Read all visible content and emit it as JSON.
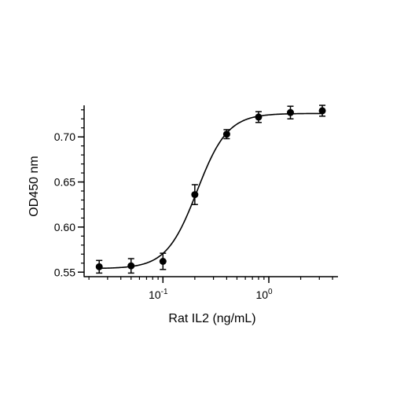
{
  "chart_data": {
    "type": "scatter",
    "title": "",
    "xlabel": "Rat IL2 (ng/mL)",
    "ylabel": "OD450 nm",
    "x_scale": "log",
    "xlim": [
      0.018,
      4.5
    ],
    "ylim": [
      0.545,
      0.735
    ],
    "grid": false,
    "y_ticks": [
      0.55,
      0.6,
      0.65,
      0.7
    ],
    "y_tick_labels": [
      "0.55",
      "0.60",
      "0.65",
      "0.70"
    ],
    "x_ticks": [
      0.1,
      1
    ],
    "x_tick_labels": [
      {
        "base": "10",
        "exp": "-1"
      },
      {
        "base": "10",
        "exp": "0"
      }
    ],
    "series": [
      {
        "x": [
          0.025,
          0.05,
          0.1,
          0.2,
          0.4,
          0.8,
          1.6,
          3.2
        ],
        "y": [
          0.556,
          0.557,
          0.562,
          0.636,
          0.703,
          0.722,
          0.727,
          0.729
        ],
        "error": [
          0.007,
          0.008,
          0.009,
          0.011,
          0.005,
          0.006,
          0.007,
          0.006
        ]
      }
    ],
    "fit_curve": {
      "model": "4PL",
      "bottom": 0.554,
      "top": 0.726,
      "ec50": 0.21,
      "hill": 3.0
    },
    "colors": {
      "marker": "#000000",
      "line": "#000000"
    }
  }
}
